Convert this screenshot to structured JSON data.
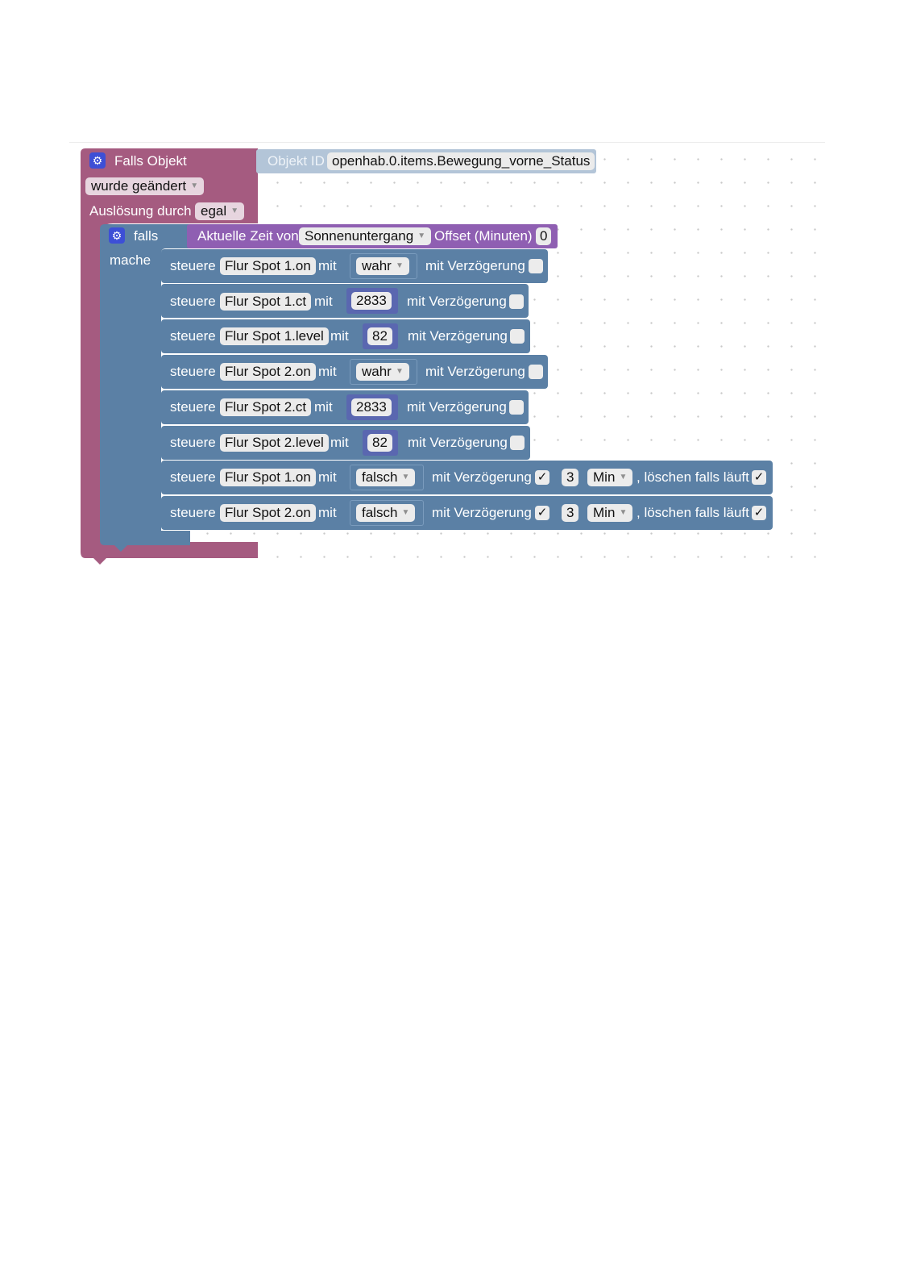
{
  "trigger": {
    "title": "Falls Objekt",
    "object_id_label": "Objekt ID",
    "object_id_value": "openhab.0.items.Bewegung_vorne_Status",
    "change_mode": "wurde geändert",
    "trigger_by_label": "Auslösung durch",
    "trigger_by_value": "egal"
  },
  "condition": {
    "if_label": "falls",
    "do_label": "mache",
    "time_label": "Aktuelle Zeit von",
    "time_value": "Sonnenuntergang",
    "offset_label": "Offset (Minuten)",
    "offset_value": "0"
  },
  "statements": [
    {
      "verb": "steuere",
      "item": "Flur Spot 1.on",
      "mit": "mit",
      "value": "wahr",
      "delay_label": "mit Verzögerung",
      "delay_checked": ""
    },
    {
      "verb": "steuere",
      "item": "Flur Spot 1.ct",
      "mit": "mit",
      "value": "2833",
      "delay_label": "mit Verzögerung",
      "delay_checked": ""
    },
    {
      "verb": "steuere",
      "item": "Flur Spot 1.level",
      "mit": "mit",
      "value": "82",
      "delay_label": "mit Verzögerung",
      "delay_checked": ""
    },
    {
      "verb": "steuere",
      "item": "Flur Spot 2.on",
      "mit": "mit",
      "value": "wahr",
      "delay_label": "mit Verzögerung",
      "delay_checked": ""
    },
    {
      "verb": "steuere",
      "item": "Flur Spot 2.ct",
      "mit": "mit",
      "value": "2833",
      "delay_label": "mit Verzögerung",
      "delay_checked": ""
    },
    {
      "verb": "steuere",
      "item": "Flur Spot 2.level",
      "mit": "mit",
      "value": "82",
      "delay_label": "mit Verzögerung",
      "delay_checked": ""
    },
    {
      "verb": "steuere",
      "item": "Flur Spot 1.on",
      "mit": "mit",
      "value": "falsch",
      "delay_label": "mit Verzögerung",
      "delay_checked": "✓",
      "delay_value": "3",
      "delay_unit": "Min",
      "clear_label": ", löschen falls läuft",
      "clear_checked": "✓"
    },
    {
      "verb": "steuere",
      "item": "Flur Spot 2.on",
      "mit": "mit",
      "value": "falsch",
      "delay_label": "mit Verzögerung",
      "delay_checked": "✓",
      "delay_value": "3",
      "delay_unit": "Min",
      "clear_label": ", löschen falls läuft",
      "clear_checked": "✓"
    }
  ],
  "icons": {
    "gear": "⚙",
    "dropdown": "▼"
  },
  "colors": {
    "trigger_block": "#a55b80",
    "control_block": "#5b80a5",
    "time_block": "#8f5fb2",
    "object_id_block": "#b3c5d8",
    "number_block": "#5a67b0"
  }
}
